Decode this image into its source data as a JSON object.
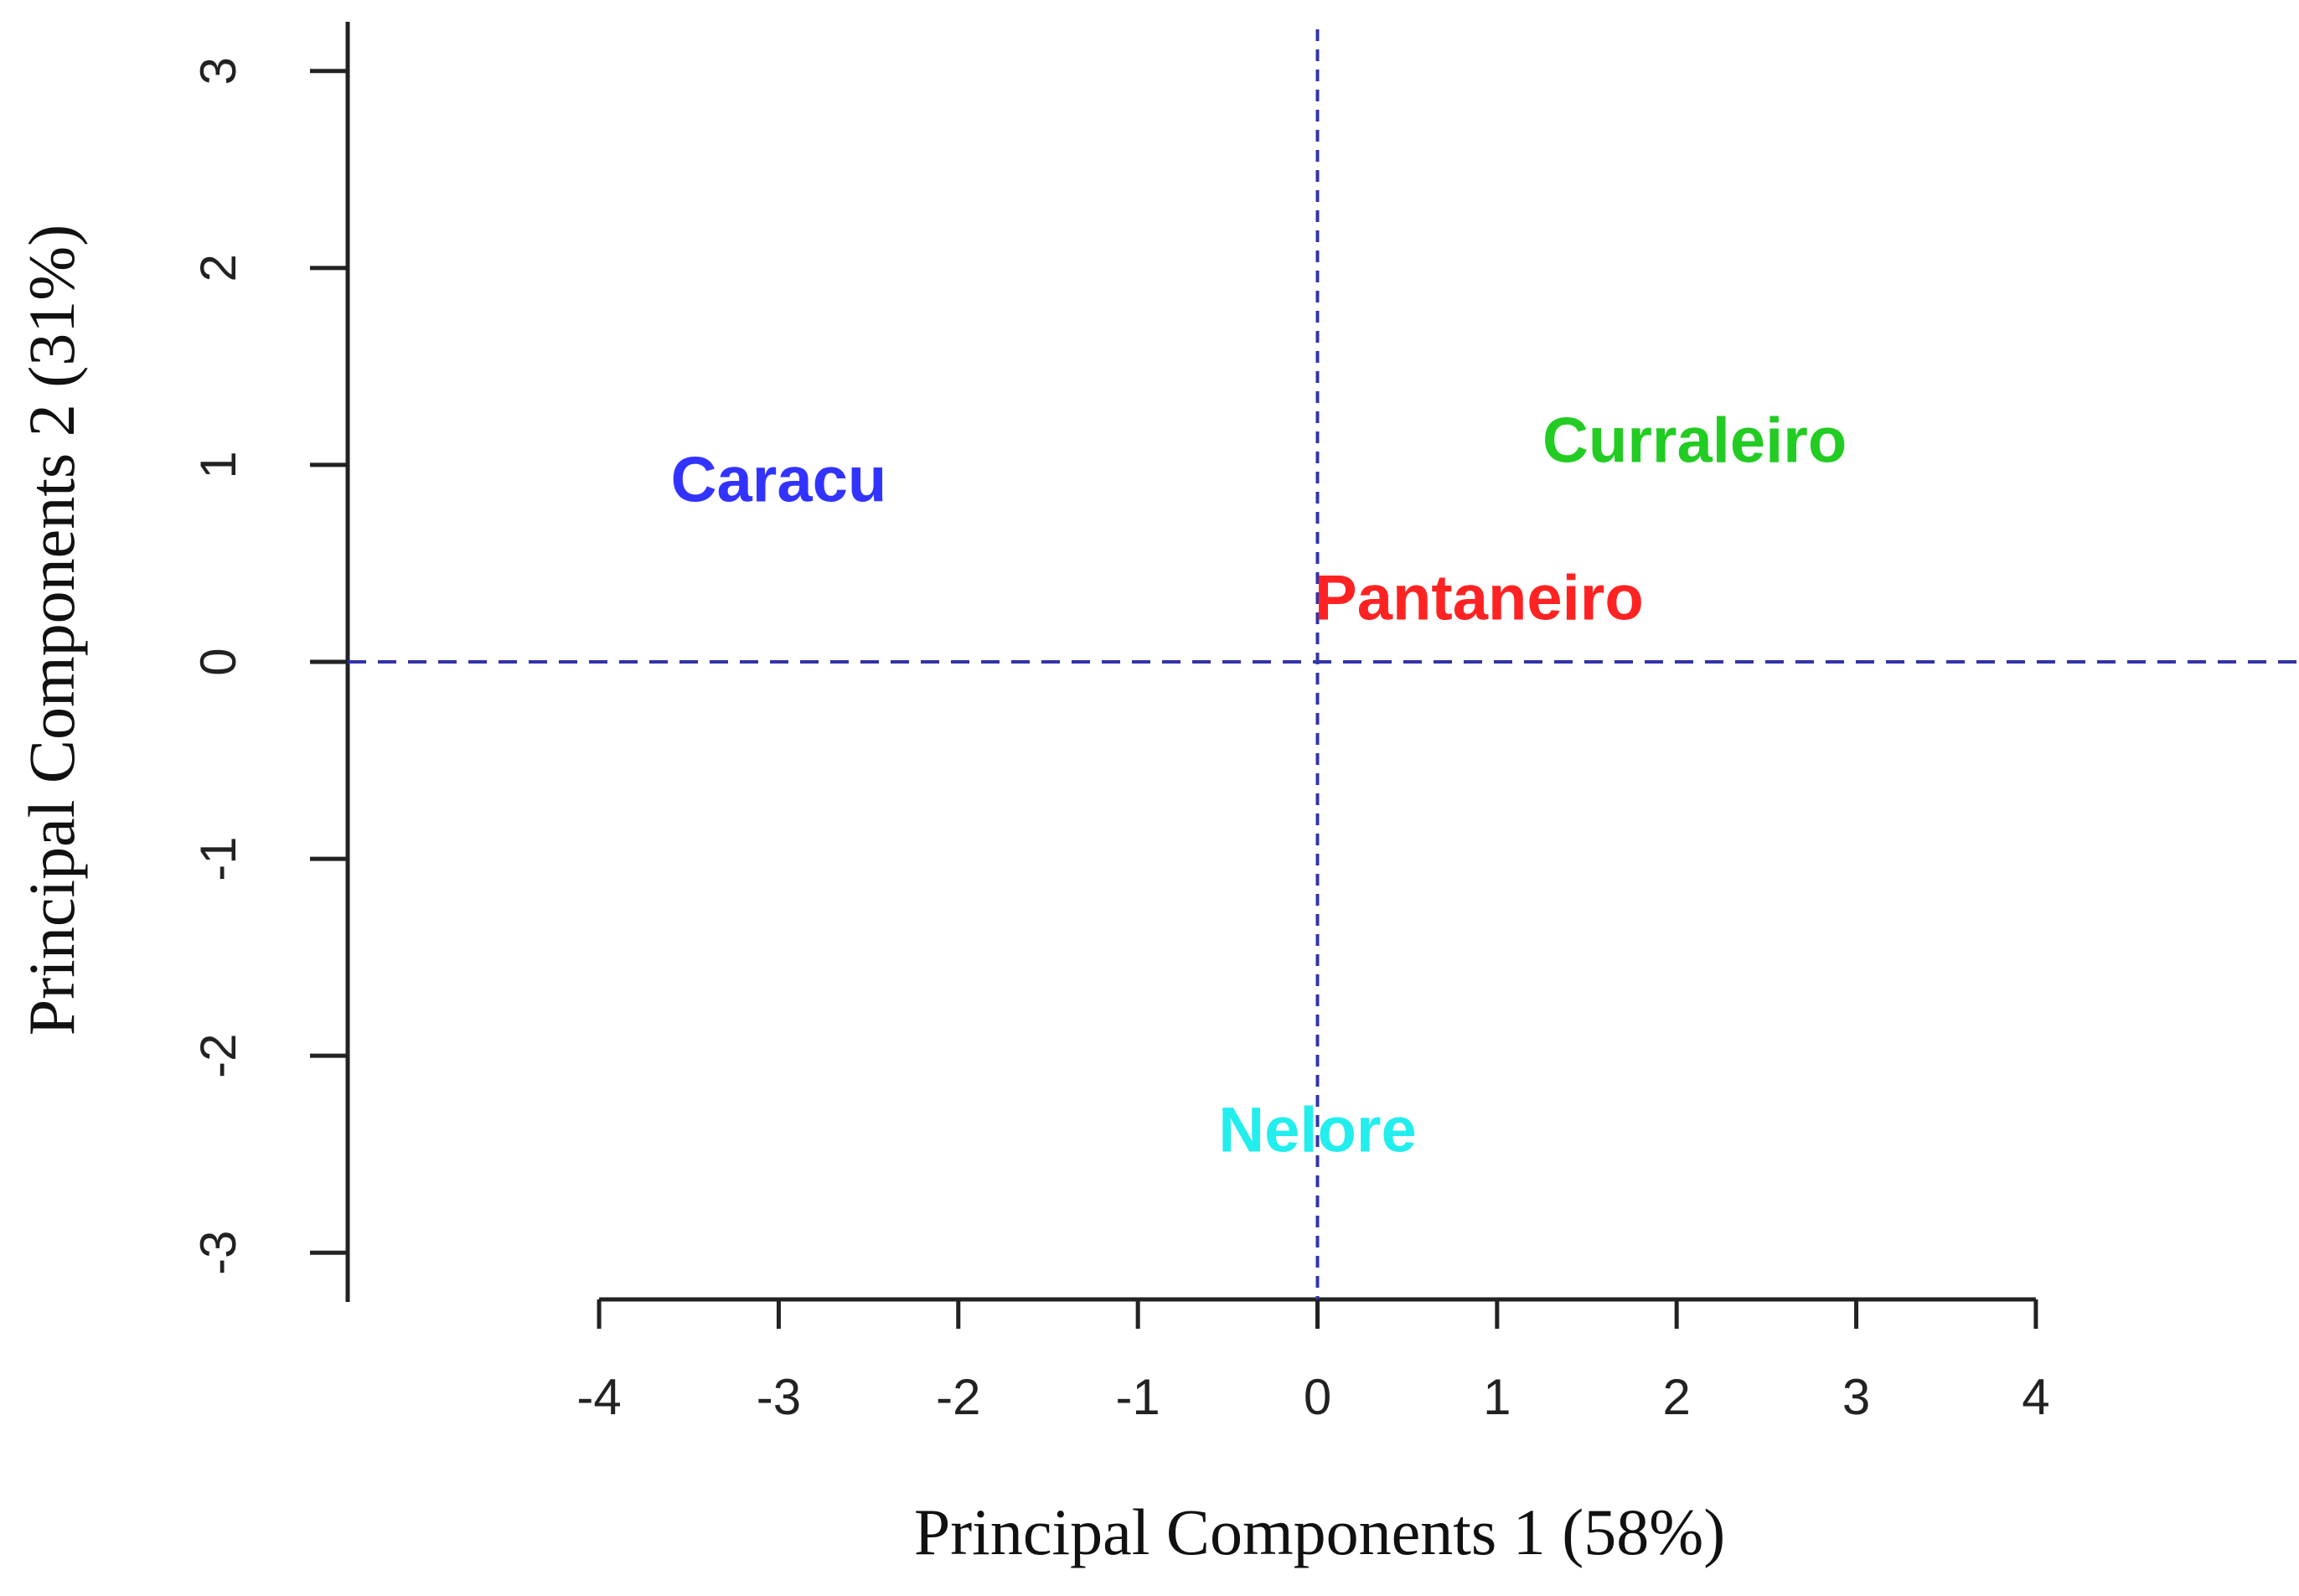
{
  "chart_data": {
    "type": "scatter",
    "x_label": "Principal Components 1 (58%)",
    "y_label": "Principal Components  2 (31%)",
    "series": [
      {
        "name": "Caracu",
        "color": "#3333ff",
        "x": [
          -3.0
        ],
        "values": [
          0.9
        ]
      },
      {
        "name": "Curraleiro",
        "color": "#22cc22",
        "x": [
          2.1
        ],
        "values": [
          1.1
        ]
      },
      {
        "name": "Pantaneiro",
        "color": "#ff2222",
        "x": [
          0.9
        ],
        "values": [
          0.3
        ]
      },
      {
        "name": "Nelore",
        "color": "#22eeee",
        "x": [
          0.0
        ],
        "values": [
          -2.4
        ]
      }
    ],
    "xlim": [
      -5.4,
      5.4
    ],
    "xticks": [
      -4,
      -3,
      -2,
      -1,
      0,
      1,
      2,
      3,
      4
    ],
    "ylim": [
      -3.25,
      3.25
    ],
    "yticks": [
      -3,
      -2,
      -1,
      0,
      1,
      2,
      3
    ],
    "hline": 0,
    "vline": 0,
    "reference_line_color": "#3333aa"
  }
}
